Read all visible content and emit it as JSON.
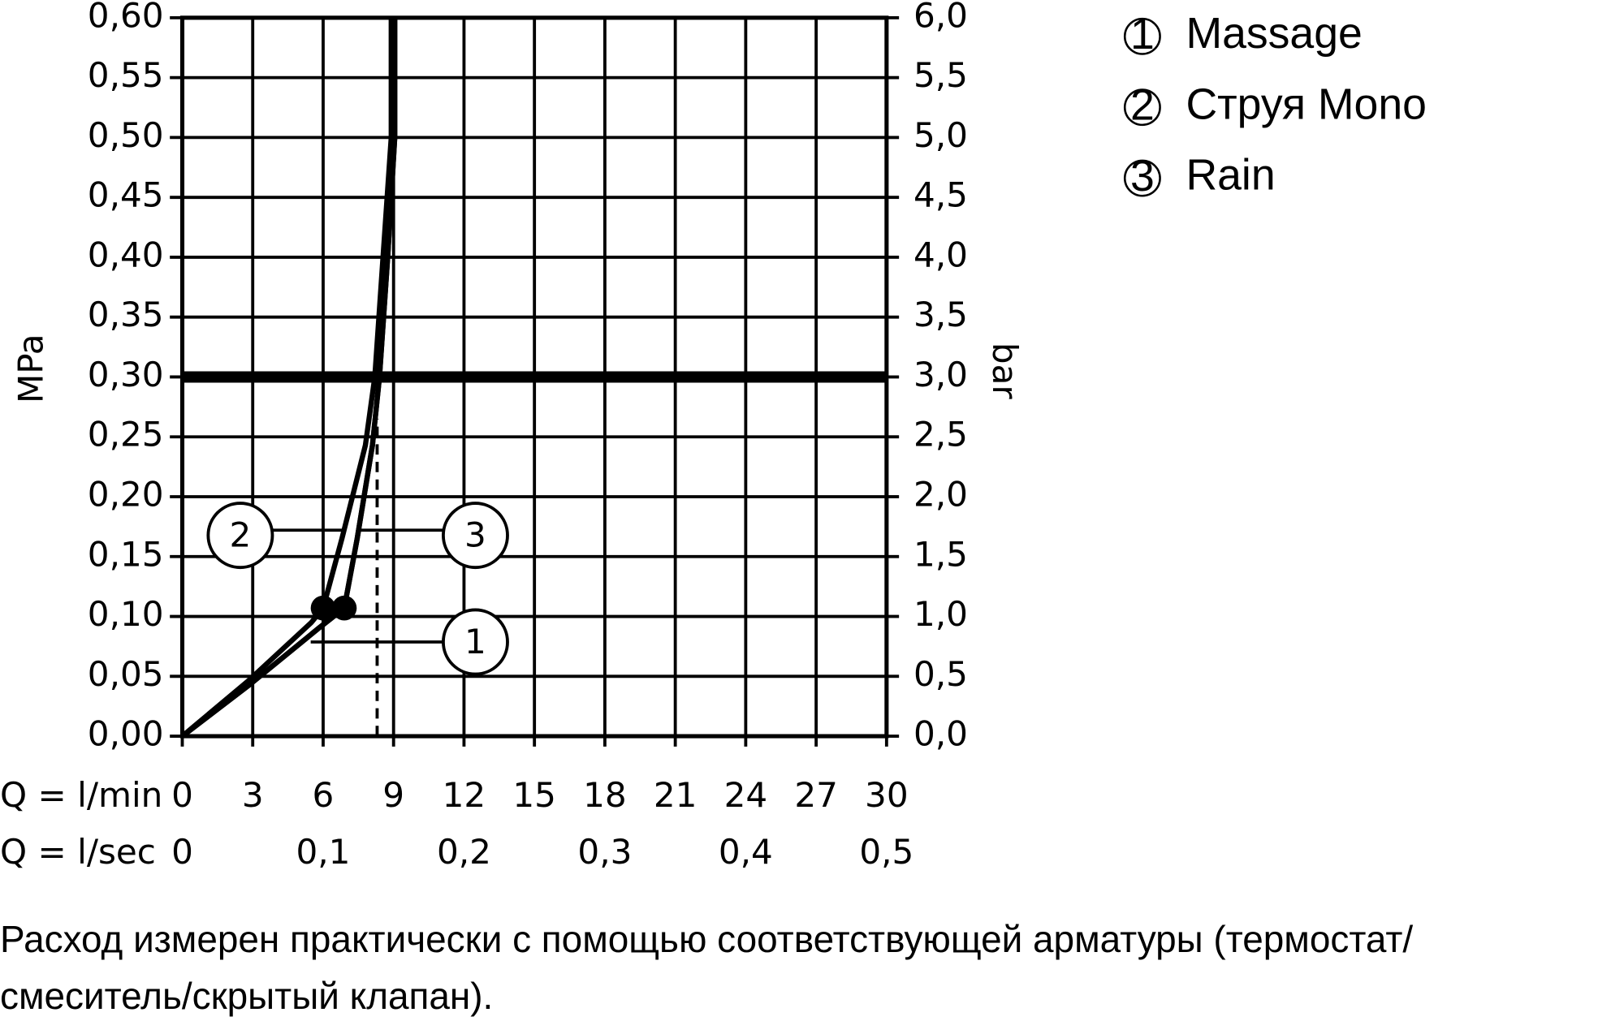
{
  "chart_data": {
    "type": "line",
    "ylabel": "MPa",
    "y2label": "bar",
    "xlabel": "Q = l/min",
    "x2label": "Q = l/sec",
    "xlim": [
      0,
      30
    ],
    "xticks": [
      0,
      3,
      6,
      9,
      12,
      15,
      18,
      21,
      24,
      27,
      30
    ],
    "x2lim": [
      0,
      0.5
    ],
    "x2ticks": [
      0,
      {
        "value": 0.1,
        "label": "0,1"
      },
      {
        "value": 0.2,
        "label": "0,2"
      },
      {
        "value": 0.3,
        "label": "0,3"
      },
      {
        "value": 0.4,
        "label": "0,4"
      },
      {
        "value": 0.5,
        "label": "0,5"
      }
    ],
    "ylim": [
      0,
      0.6
    ],
    "yticks": [
      {
        "value": 0,
        "label": "0,00"
      },
      {
        "value": 0.05,
        "label": "0,05"
      },
      {
        "value": 0.1,
        "label": "0,10"
      },
      {
        "value": 0.15,
        "label": "0,15"
      },
      {
        "value": 0.2,
        "label": "0,20"
      },
      {
        "value": 0.25,
        "label": "0,25"
      },
      {
        "value": 0.3,
        "label": "0,30"
      },
      {
        "value": 0.35,
        "label": "0,35"
      },
      {
        "value": 0.4,
        "label": "0,40"
      },
      {
        "value": 0.45,
        "label": "0,45"
      },
      {
        "value": 0.5,
        "label": "0,50"
      },
      {
        "value": 0.55,
        "label": "0,55"
      },
      {
        "value": 0.6,
        "label": "0,60"
      }
    ],
    "y2lim": [
      0,
      6
    ],
    "y2ticks": [
      {
        "value": 0,
        "label": "0,0"
      },
      {
        "value": 0.5,
        "label": "0,5"
      },
      {
        "value": 1,
        "label": "1,0"
      },
      {
        "value": 1.5,
        "label": "1,5"
      },
      {
        "value": 2,
        "label": "2,0"
      },
      {
        "value": 2.5,
        "label": "2,5"
      },
      {
        "value": 3,
        "label": "3,0"
      },
      {
        "value": 3.5,
        "label": "3,5"
      },
      {
        "value": 4,
        "label": "4,0"
      },
      {
        "value": 4.5,
        "label": "4,5"
      },
      {
        "value": 5,
        "label": "5,0"
      },
      {
        "value": 5.5,
        "label": "5,5"
      },
      {
        "value": 6,
        "label": "6,0"
      }
    ],
    "grid": true,
    "series": [
      {
        "name": "Massage",
        "marker_label": "1",
        "color": "#000000",
        "x": [
          0,
          2.8,
          5.8,
          6.9,
          7.45,
          8.1,
          8.4,
          8.75,
          9.05,
          9.05
        ],
        "values": [
          0,
          0.042,
          0.09,
          0.107,
          0.165,
          0.243,
          0.3,
          0.4,
          0.5,
          0.6
        ]
      },
      {
        "name": "Струя Mono",
        "marker_label": "2",
        "color": "#000000",
        "x": [
          0,
          2.8,
          5.5,
          6.0,
          6.8,
          7.8,
          8.2,
          8.55,
          8.9,
          8.9
        ],
        "values": [
          0,
          0.046,
          0.095,
          0.107,
          0.165,
          0.243,
          0.3,
          0.4,
          0.5,
          0.6
        ]
      },
      {
        "name": "Rain",
        "marker_label": "3",
        "color": "#000000",
        "x": [
          0,
          2.8,
          5.8,
          6.9,
          7.45,
          8.1,
          8.4,
          8.75,
          9.05,
          9.05
        ],
        "values": [
          0,
          0.042,
          0.09,
          0.107,
          0.165,
          0.243,
          0.3,
          0.4,
          0.5,
          0.6
        ]
      }
    ],
    "points": [
      {
        "x": 6.0,
        "y": 0.107
      },
      {
        "x": 6.9,
        "y": 0.107
      }
    ],
    "hline": 0.3,
    "vline": {
      "x": 8.3,
      "y": 0.265
    },
    "footnote": [
      "Расход измерен практически с помощью соответствующей арматуры (термостат/",
      "смеситель/скрытый клапан)."
    ]
  }
}
